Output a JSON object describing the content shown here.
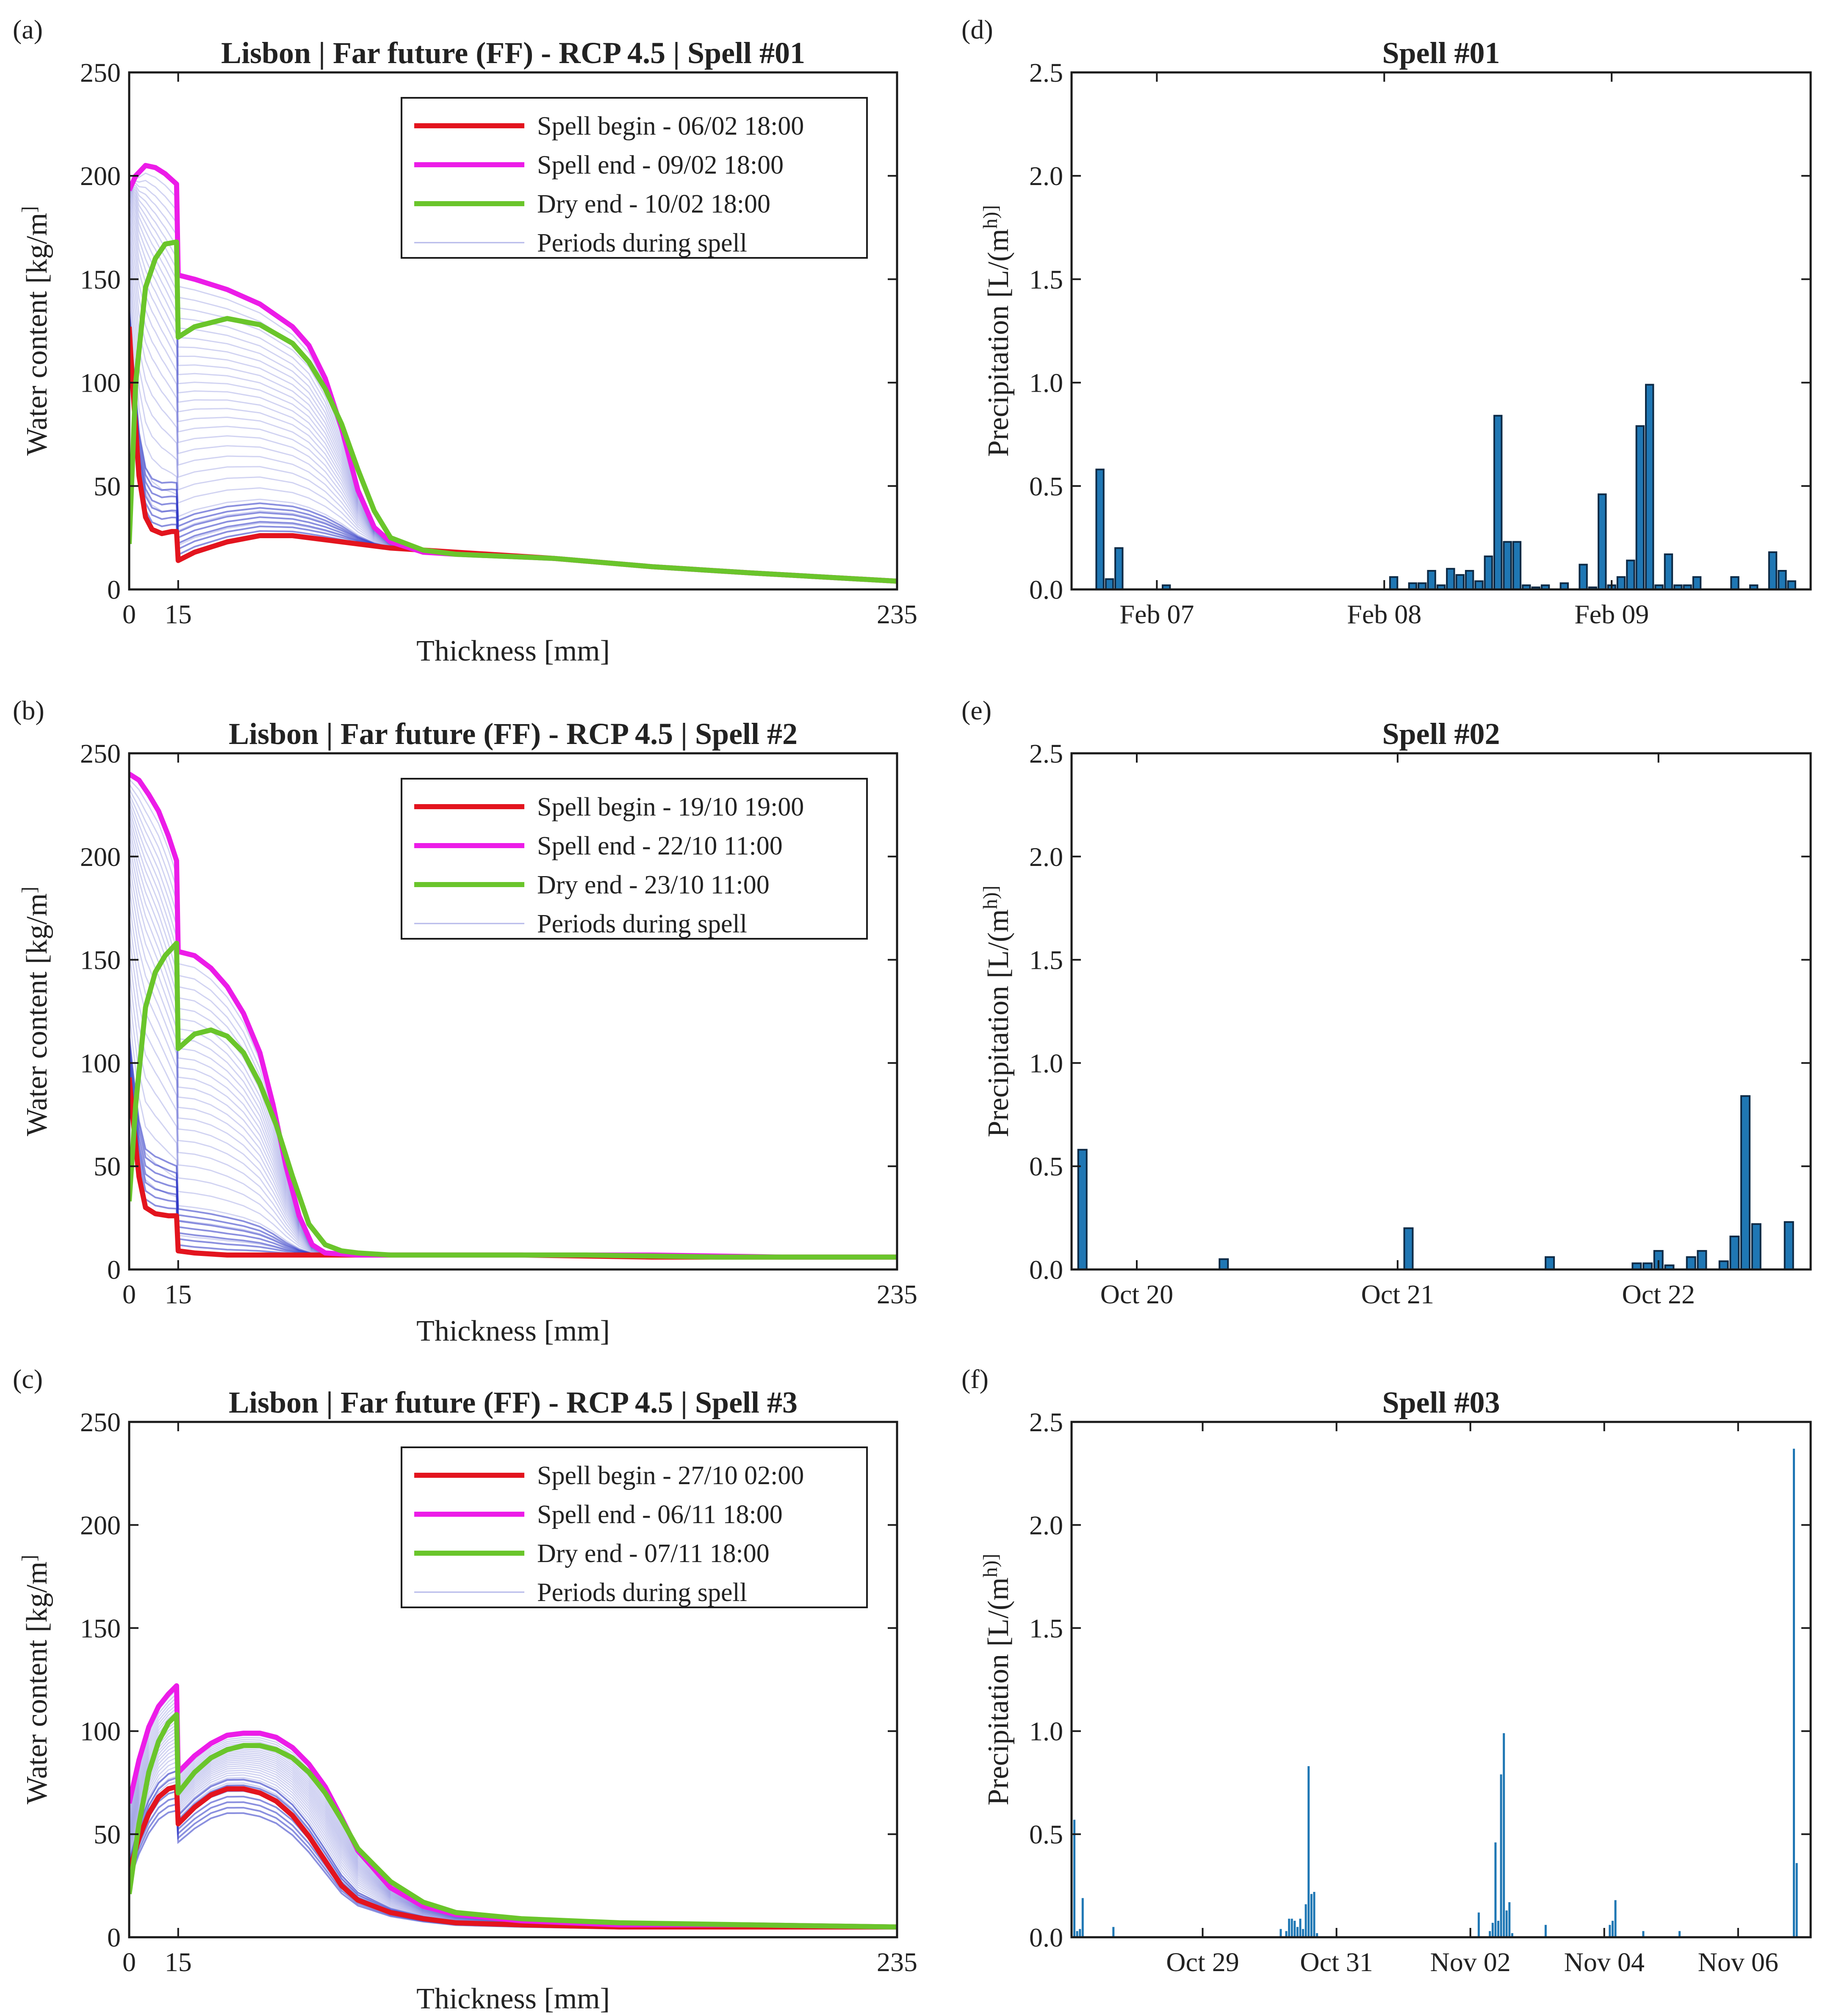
{
  "figure": {
    "colors": {
      "spell_begin": "#e3141e",
      "spell_end": "#ec1ce8",
      "dry_end": "#6ac52b",
      "periods": "#2c35c4",
      "bars": "#1f77b4",
      "bar_edge": "#0d2a45"
    }
  },
  "chart_data": [
    {
      "panel": "(a)",
      "type": "line",
      "title": "Lisbon | Far future (FF) - RCP 4.5 | Spell #01",
      "xlabel": "Thickness [mm]",
      "ylabel": "Water content [kg/m³]",
      "xlim": [
        0,
        235
      ],
      "ylim": [
        0,
        250
      ],
      "xticks": [
        0,
        15,
        235
      ],
      "yticks": [
        0,
        50,
        100,
        150,
        200,
        250
      ],
      "legend_position": "top-right",
      "series": [
        {
          "name": "Spell begin - 06/02 18:00",
          "x": [
            0,
            1,
            3,
            5,
            7,
            10,
            13,
            14.5,
            15,
            20,
            30,
            40,
            50,
            60,
            70,
            80,
            100,
            130,
            160,
            190,
            235
          ],
          "y": [
            127,
            100,
            55,
            35,
            29,
            27,
            28,
            28,
            14,
            18,
            23,
            26,
            26,
            24,
            22,
            20,
            18,
            15,
            11,
            8,
            4
          ]
        },
        {
          "name": "Spell end - 09/02 18:00",
          "x": [
            0,
            2,
            5,
            8,
            11,
            14.5,
            15,
            20,
            30,
            40,
            50,
            55,
            60,
            65,
            70,
            75,
            80,
            90,
            100,
            130,
            160,
            190,
            235
          ],
          "y": [
            193,
            200,
            205,
            204,
            201,
            196,
            152,
            150,
            145,
            138,
            127,
            118,
            102,
            78,
            48,
            30,
            23,
            18,
            17,
            15,
            11,
            8,
            4
          ]
        },
        {
          "name": "Dry end - 10/02 18:00",
          "x": [
            0,
            2,
            5,
            8,
            11,
            14.5,
            15,
            20,
            30,
            40,
            50,
            55,
            60,
            65,
            70,
            75,
            80,
            90,
            100,
            130,
            160,
            190,
            235
          ],
          "y": [
            22,
            100,
            146,
            160,
            167,
            168,
            122,
            127,
            131,
            128,
            119,
            110,
            97,
            80,
            58,
            38,
            25,
            19,
            17,
            15,
            11,
            8,
            4
          ]
        }
      ],
      "periods_label": "Periods during spell"
    },
    {
      "panel": "(b)",
      "type": "line",
      "title": "Lisbon | Far future (FF) - RCP 4.5 | Spell #2",
      "xlabel": "Thickness [mm]",
      "ylabel": "Water content [kg/m³]",
      "xlim": [
        0,
        235
      ],
      "ylim": [
        0,
        250
      ],
      "xticks": [
        0,
        15,
        235
      ],
      "yticks": [
        0,
        50,
        100,
        150,
        200,
        250
      ],
      "legend_position": "top-right",
      "series": [
        {
          "name": "Spell begin - 19/10 19:00",
          "x": [
            0,
            1,
            3,
            5,
            8,
            12,
            14.5,
            15,
            20,
            30,
            40,
            50,
            60,
            80,
            120,
            160,
            200,
            235
          ],
          "y": [
            93,
            75,
            45,
            30,
            27,
            26,
            26,
            9,
            8,
            7,
            7,
            7,
            7,
            7,
            7,
            6,
            6,
            6
          ]
        },
        {
          "name": "Spell end - 22/10 11:00",
          "x": [
            0,
            3,
            6,
            9,
            12,
            14.5,
            15,
            20,
            25,
            30,
            35,
            40,
            44,
            48,
            52,
            56,
            60,
            70,
            80,
            120,
            160,
            200,
            235
          ],
          "y": [
            240,
            237,
            230,
            222,
            210,
            198,
            154,
            152,
            146,
            137,
            124,
            105,
            80,
            50,
            26,
            12,
            8,
            7,
            7,
            7,
            7,
            6,
            6
          ]
        },
        {
          "name": "Dry end - 23/10 11:00",
          "x": [
            0,
            2,
            5,
            8,
            11,
            14.5,
            15,
            20,
            25,
            30,
            35,
            40,
            45,
            50,
            55,
            60,
            65,
            70,
            80,
            100,
            140,
            180,
            235
          ],
          "y": [
            33,
            80,
            127,
            144,
            152,
            158,
            107,
            114,
            116,
            113,
            105,
            90,
            70,
            45,
            22,
            12,
            9,
            8,
            7,
            7,
            7,
            6,
            6
          ]
        }
      ],
      "periods_label": "Periods during spell"
    },
    {
      "panel": "(c)",
      "type": "line",
      "title": "Lisbon | Far future (FF) - RCP 4.5 | Spell #3",
      "xlabel": "Thickness [mm]",
      "ylabel": "Water content [kg/m³]",
      "xlim": [
        0,
        235
      ],
      "ylim": [
        0,
        250
      ],
      "xticks": [
        0,
        15,
        235
      ],
      "yticks": [
        0,
        50,
        100,
        150,
        200,
        250
      ],
      "legend_position": "top-right",
      "series": [
        {
          "name": "Spell begin - 27/10 02:00",
          "x": [
            0,
            3,
            6,
            9,
            12,
            14.5,
            15,
            20,
            25,
            30,
            35,
            40,
            45,
            50,
            55,
            60,
            65,
            70,
            80,
            90,
            100,
            120,
            150,
            190,
            235
          ],
          "y": [
            32,
            48,
            60,
            68,
            72,
            73,
            55,
            63,
            69,
            72,
            72,
            70,
            66,
            59,
            49,
            37,
            25,
            18,
            12,
            9,
            7,
            6,
            5,
            5,
            5
          ]
        },
        {
          "name": "Spell end - 06/11 18:00",
          "x": [
            0,
            3,
            6,
            9,
            12,
            14.5,
            15,
            20,
            25,
            30,
            35,
            40,
            45,
            50,
            55,
            60,
            65,
            70,
            80,
            90,
            100,
            120,
            150,
            190,
            235
          ],
          "y": [
            65,
            86,
            102,
            112,
            118,
            122,
            80,
            88,
            94,
            98,
            99,
            99,
            97,
            92,
            84,
            73,
            58,
            42,
            24,
            15,
            11,
            8,
            6,
            6,
            5
          ]
        },
        {
          "name": "Dry end - 07/11 18:00",
          "x": [
            0,
            3,
            6,
            9,
            12,
            14.5,
            15,
            20,
            25,
            30,
            35,
            40,
            45,
            50,
            55,
            60,
            65,
            70,
            80,
            90,
            100,
            120,
            150,
            190,
            235
          ],
          "y": [
            21,
            55,
            80,
            95,
            104,
            108,
            70,
            80,
            87,
            91,
            93,
            93,
            91,
            87,
            80,
            70,
            57,
            43,
            27,
            17,
            12,
            9,
            7,
            6,
            5
          ]
        }
      ],
      "periods_label": "Periods during spell"
    },
    {
      "panel": "(d)",
      "type": "bar",
      "title": "Spell #01",
      "xlabel": "",
      "ylabel": "Precipitation [L/(m²h)]",
      "ylim": [
        0,
        2.5
      ],
      "yticks": [
        "0.0",
        "0.5",
        "1.0",
        "1.5",
        "2.0",
        "2.5"
      ],
      "xticklabels": [
        "Feb 07",
        "Feb 08",
        "Feb 09"
      ],
      "x_range_hours": [
        -3,
        75
      ],
      "xtick_hours": [
        6,
        30,
        54
      ],
      "hours": [
        0,
        1,
        2,
        7,
        31,
        33,
        34,
        35,
        36,
        37,
        38,
        39,
        40,
        41,
        42,
        43,
        44,
        45,
        46,
        47,
        49,
        51,
        52,
        53,
        54,
        55,
        56,
        57,
        58,
        59,
        60,
        61,
        62,
        63,
        67,
        69,
        71,
        72,
        73
      ],
      "values": [
        0.58,
        0.05,
        0.2,
        0.02,
        0.06,
        0.03,
        0.03,
        0.09,
        0.02,
        0.1,
        0.07,
        0.09,
        0.04,
        0.16,
        0.84,
        0.23,
        0.23,
        0.02,
        0.01,
        0.02,
        0.03,
        0.12,
        0.01,
        0.46,
        0.02,
        0.06,
        0.14,
        0.79,
        0.99,
        0.02,
        0.17,
        0.02,
        0.02,
        0.06,
        0.06,
        0.02,
        0.18,
        0.09,
        0.04
      ]
    },
    {
      "panel": "(e)",
      "type": "bar",
      "title": "Spell #02",
      "xlabel": "",
      "ylabel": "Precipitation [L/(m²h)]",
      "ylim": [
        0,
        2.5
      ],
      "yticks": [
        "0.0",
        "0.5",
        "1.0",
        "1.5",
        "2.0",
        "2.5"
      ],
      "xticklabels": [
        "Oct 20",
        "Oct 21",
        "Oct 22"
      ],
      "x_range_hours": [
        -1,
        67
      ],
      "xtick_hours": [
        5,
        29,
        53
      ],
      "hours": [
        0,
        13,
        30,
        43,
        51,
        52,
        53,
        54,
        56,
        57,
        59,
        60,
        61,
        62,
        65
      ],
      "values": [
        0.58,
        0.05,
        0.2,
        0.06,
        0.03,
        0.03,
        0.09,
        0.02,
        0.06,
        0.09,
        0.04,
        0.16,
        0.84,
        0.22,
        0.23
      ]
    },
    {
      "panel": "(f)",
      "type": "bar",
      "title": "Spell #03",
      "xlabel": "",
      "ylabel": "Precipitation [L/(m²h)]",
      "ylim": [
        0,
        2.5
      ],
      "yticks": [
        "0.0",
        "0.5",
        "1.0",
        "1.5",
        "2.0",
        "2.5"
      ],
      "xticklabels": [
        "Oct 29",
        "Oct 31",
        "Nov 02",
        "Nov 04",
        "Nov 06"
      ],
      "x_range_hours": [
        -1,
        264
      ],
      "xtick_hours": [
        46,
        94,
        142,
        190,
        238
      ],
      "hours": [
        0,
        1,
        2,
        3,
        14,
        74,
        76,
        77,
        78,
        79,
        80,
        81,
        82,
        83,
        84,
        85,
        86,
        87,
        145,
        149,
        150,
        151,
        152,
        153,
        154,
        155,
        156,
        157,
        169,
        192,
        193,
        194,
        204,
        217,
        258,
        259
      ],
      "values": [
        0.57,
        0.03,
        0.04,
        0.19,
        0.05,
        0.04,
        0.03,
        0.09,
        0.09,
        0.08,
        0.05,
        0.09,
        0.04,
        0.16,
        0.83,
        0.21,
        0.22,
        0.02,
        0.12,
        0.03,
        0.07,
        0.46,
        0.08,
        0.79,
        0.99,
        0.13,
        0.17,
        0.02,
        0.06,
        0.06,
        0.08,
        0.18,
        0.03,
        0.03,
        2.37,
        0.36
      ]
    }
  ]
}
